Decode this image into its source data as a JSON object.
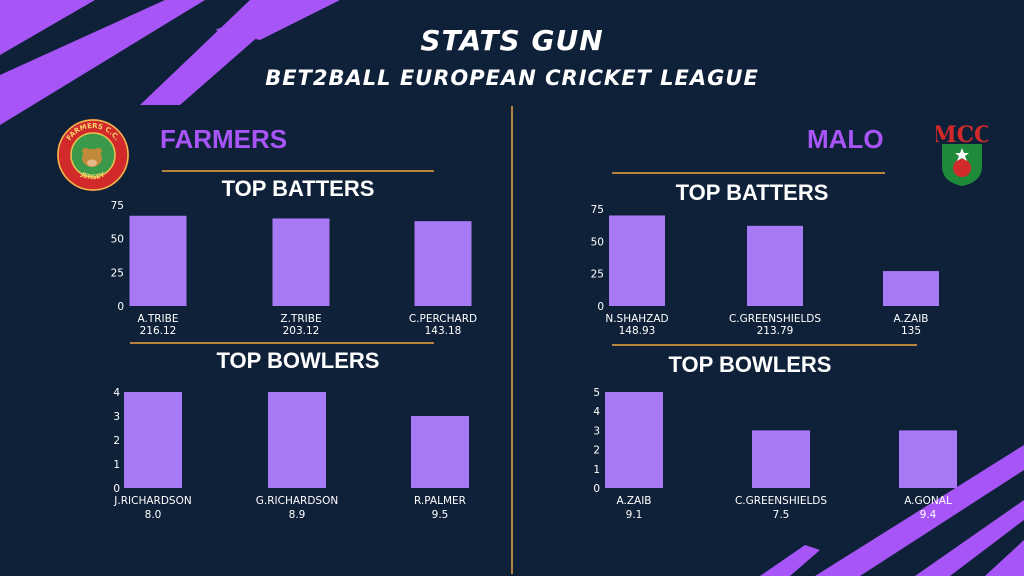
{
  "header": {
    "title": "STATS GUN",
    "subtitle": "BET2BALL EUROPEAN CRICKET LEAGUE"
  },
  "colors": {
    "background": "#0f2139",
    "accent": "#a855f7",
    "bar": "#a879f4",
    "divider": "#b8833a"
  },
  "teams": {
    "left": {
      "name": "FARMERS",
      "logo_text_top": "FARMERS C.C.",
      "logo_text_bottom": "JERSEY"
    },
    "right": {
      "name": "MALO",
      "logo_text": "MCC"
    }
  },
  "sections": {
    "batters": "TOP BATTERS",
    "bowlers": "TOP BOWLERS"
  },
  "chart_data": [
    {
      "type": "bar",
      "team": "FARMERS",
      "section": "TOP BATTERS",
      "categories": [
        "A.TRIBE",
        "Z.TRIBE",
        "C.PERCHARD"
      ],
      "sublabels": [
        "216.12",
        "203.12",
        "143.18"
      ],
      "values": [
        67,
        65,
        63
      ],
      "yticks": [
        0,
        25,
        50,
        75
      ],
      "ylim": [
        0,
        75
      ]
    },
    {
      "type": "bar",
      "team": "FARMERS",
      "section": "TOP BOWLERS",
      "categories": [
        "J.RICHARDSON",
        "G.RICHARDSON",
        "R.PALMER"
      ],
      "sublabels": [
        "8.0",
        "8.9",
        "9.5"
      ],
      "values": [
        4,
        4,
        3
      ],
      "yticks": [
        0,
        1,
        2,
        3,
        4
      ],
      "ylim": [
        0,
        4
      ]
    },
    {
      "type": "bar",
      "team": "MALO",
      "section": "TOP BATTERS",
      "categories": [
        "N.SHAHZAD",
        "C.GREENSHIELDS",
        "A.ZAIB"
      ],
      "sublabels": [
        "148.93",
        "213.79",
        "135"
      ],
      "values": [
        70,
        62,
        27
      ],
      "yticks": [
        0,
        25,
        50,
        75
      ],
      "ylim": [
        0,
        75
      ]
    },
    {
      "type": "bar",
      "team": "MALO",
      "section": "TOP BOWLERS",
      "categories": [
        "A.ZAIB",
        "C.GREENSHIELDS",
        "A.GONAL"
      ],
      "sublabels": [
        "9.1",
        "7.5",
        "9.4"
      ],
      "values": [
        5,
        3,
        3
      ],
      "yticks": [
        0,
        1,
        2,
        3,
        4,
        5
      ],
      "ylim": [
        0,
        5
      ]
    }
  ]
}
